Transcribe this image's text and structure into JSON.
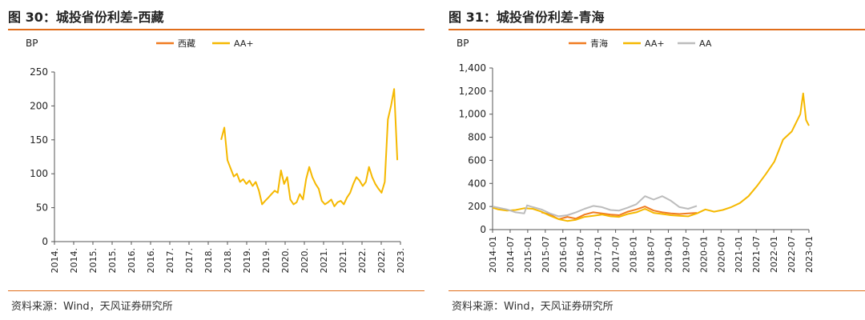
{
  "colors": {
    "primary_orange": "#f07b20",
    "aa_plus_yellow": "#f5b800",
    "aa_gray": "#bcbcbc",
    "rule_orange": "#e06d1a"
  },
  "left": {
    "title": "图 30：城投省份利差-西藏",
    "source": "资料来源：Wind，天风证券研究所"
  },
  "right": {
    "title": "图 31：城投省份利差-青海",
    "source": "资料来源：Wind，天风证券研究所"
  },
  "chart_data": [
    {
      "type": "line",
      "ylabel": "BP",
      "ylim": [
        0,
        250
      ],
      "yticks": [
        0,
        50,
        100,
        150,
        200,
        250
      ],
      "x_tick_labels": [
        "2014.",
        "2014.",
        "2015.",
        "2015.",
        "2016.",
        "2016.",
        "2017.",
        "2017.",
        "2018.",
        "2018.",
        "2019.",
        "2019.",
        "2020.",
        "2020.",
        "2021.",
        "2021.",
        "2022.",
        "2022.",
        "2023."
      ],
      "xlim": [
        "2014-01",
        "2023-03"
      ],
      "legend_position": "top-center",
      "series": [
        {
          "name": "西藏",
          "color": "#f07b20",
          "x": [],
          "values": []
        },
        {
          "name": "AA+",
          "color": "#f5b800",
          "x": [
            "2018-06",
            "2018-07",
            "2018-08",
            "2018-09",
            "2018-10",
            "2018-11",
            "2018-12",
            "2019-01",
            "2019-02",
            "2019-03",
            "2019-04",
            "2019-05",
            "2019-06",
            "2019-07",
            "2019-08",
            "2019-09",
            "2019-10",
            "2019-11",
            "2019-12",
            "2020-01",
            "2020-02",
            "2020-03",
            "2020-04",
            "2020-05",
            "2020-06",
            "2020-07",
            "2020-08",
            "2020-09",
            "2020-10",
            "2020-11",
            "2020-12",
            "2021-01",
            "2021-02",
            "2021-03",
            "2021-04",
            "2021-05",
            "2021-06",
            "2021-07",
            "2021-08",
            "2021-09",
            "2021-10",
            "2021-11",
            "2021-12",
            "2022-01",
            "2022-02",
            "2022-03",
            "2022-04",
            "2022-05",
            "2022-06",
            "2022-07",
            "2022-08",
            "2022-09",
            "2022-10",
            "2022-11",
            "2022-12",
            "2023-01",
            "2023-02"
          ],
          "values": [
            150,
            168,
            120,
            108,
            96,
            100,
            88,
            92,
            85,
            90,
            82,
            88,
            75,
            55,
            60,
            65,
            70,
            75,
            72,
            105,
            85,
            95,
            62,
            55,
            58,
            70,
            62,
            92,
            110,
            95,
            85,
            78,
            60,
            55,
            58,
            62,
            52,
            58,
            60,
            55,
            65,
            72,
            85,
            95,
            90,
            82,
            88,
            110,
            95,
            85,
            78,
            72,
            88,
            180,
            200,
            225,
            120
          ]
        }
      ]
    },
    {
      "type": "line",
      "ylabel": "BP",
      "ylim": [
        0,
        1400
      ],
      "yticks": [
        0,
        200,
        400,
        600,
        800,
        1000,
        1200,
        1400
      ],
      "ytick_labels": [
        "0",
        "200",
        "400",
        "600",
        "800",
        "1,000",
        "1,200",
        "1,400"
      ],
      "x_tick_labels": [
        "2014-01",
        "2014-07",
        "2015-01",
        "2015-07",
        "2016-01",
        "2016-07",
        "2017-01",
        "2017-07",
        "2018-01",
        "2018-07",
        "2019-01",
        "2019-07",
        "2020-01",
        "2020-07",
        "2021-01",
        "2021-07",
        "2022-01",
        "2022-07",
        "2023-01"
      ],
      "xlim": [
        "2014-01",
        "2023-03"
      ],
      "legend_position": "top-center",
      "series": [
        {
          "name": "青海",
          "color": "#f07b20",
          "x": [
            "2015-06",
            "2015-09",
            "2015-12",
            "2016-03",
            "2016-06",
            "2016-09",
            "2016-12",
            "2017-03",
            "2017-06",
            "2017-09",
            "2017-12",
            "2018-03",
            "2018-06",
            "2018-09",
            "2018-12",
            "2019-03",
            "2019-06",
            "2019-09",
            "2019-12"
          ],
          "values": [
            150,
            130,
            90,
            110,
            95,
            130,
            150,
            140,
            130,
            125,
            155,
            175,
            200,
            165,
            150,
            140,
            135,
            140,
            145
          ]
        },
        {
          "name": "AA+",
          "color": "#f5b800",
          "x": [
            "2014-01",
            "2014-03",
            "2014-06",
            "2014-09",
            "2014-12",
            "2015-03",
            "2015-06",
            "2015-09",
            "2015-12",
            "2016-03",
            "2016-06",
            "2016-09",
            "2016-12",
            "2017-03",
            "2017-06",
            "2017-09",
            "2017-12",
            "2018-03",
            "2018-06",
            "2018-09",
            "2018-12",
            "2019-03",
            "2019-06",
            "2019-09",
            "2019-12",
            "2020-03",
            "2020-06",
            "2020-09",
            "2020-12",
            "2021-03",
            "2021-06",
            "2021-09",
            "2021-12",
            "2022-03",
            "2022-06",
            "2022-09",
            "2022-12",
            "2023-01",
            "2023-02",
            "2023-03"
          ],
          "values": [
            190,
            175,
            165,
            170,
            185,
            180,
            155,
            120,
            90,
            75,
            85,
            110,
            120,
            130,
            115,
            110,
            135,
            150,
            180,
            145,
            135,
            125,
            120,
            115,
            140,
            175,
            155,
            170,
            195,
            230,
            290,
            380,
            480,
            590,
            780,
            850,
            1000,
            1180,
            950,
            900
          ]
        },
        {
          "name": "AA",
          "color": "#bcbcbc",
          "x": [
            "2014-01",
            "2014-06",
            "2014-09",
            "2014-12",
            "2015-01",
            "2015-03",
            "2015-06",
            "2015-09",
            "2015-12",
            "2016-03",
            "2016-06",
            "2016-09",
            "2016-12",
            "2017-03",
            "2017-06",
            "2017-09",
            "2017-12",
            "2018-03",
            "2018-06",
            "2018-09",
            "2018-12",
            "2019-03",
            "2019-06",
            "2019-09",
            "2019-12"
          ],
          "values": [
            200,
            175,
            150,
            140,
            210,
            195,
            175,
            140,
            115,
            125,
            150,
            180,
            205,
            195,
            170,
            165,
            190,
            220,
            290,
            260,
            290,
            250,
            195,
            180,
            205
          ]
        }
      ]
    }
  ]
}
